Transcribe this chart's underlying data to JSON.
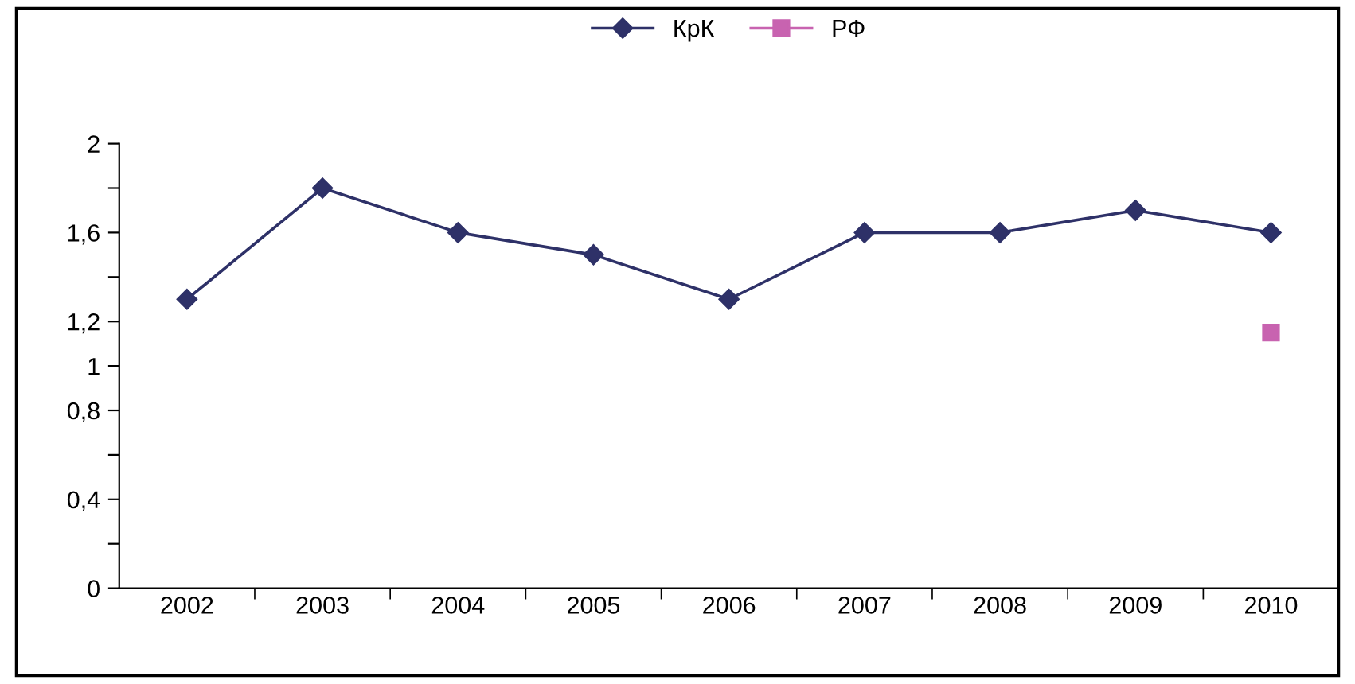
{
  "chart_data": {
    "type": "line",
    "categories": [
      "2002",
      "2003",
      "2004",
      "2005",
      "2006",
      "2007",
      "2008",
      "2009",
      "2010"
    ],
    "series": [
      {
        "name": "КрК",
        "color": "#2e3168",
        "marker": "diamond",
        "values": [
          1.3,
          1.8,
          1.6,
          1.5,
          1.3,
          1.6,
          1.6,
          1.7,
          1.6
        ]
      },
      {
        "name": "РФ",
        "color": "#c863b0",
        "marker": "square",
        "values": [
          null,
          null,
          null,
          null,
          null,
          null,
          null,
          null,
          1.15
        ]
      }
    ],
    "ylim": [
      0,
      2
    ],
    "yticks": [
      0,
      {
        "value": 0.2,
        "label": null
      },
      "0,4",
      {
        "value": 0.6,
        "label": null
      },
      {
        "value": 0.8,
        "label": "0,8"
      },
      {
        "value": 1,
        "label": "1"
      },
      {
        "value": 1.2,
        "label": "1,2"
      },
      {
        "value": 1.4,
        "label": null
      },
      {
        "value": 1.6,
        "label": "1,6"
      },
      {
        "value": 1.8,
        "label": null
      },
      2
    ],
    "grid": false,
    "legend": "top",
    "line_style": "solid"
  }
}
